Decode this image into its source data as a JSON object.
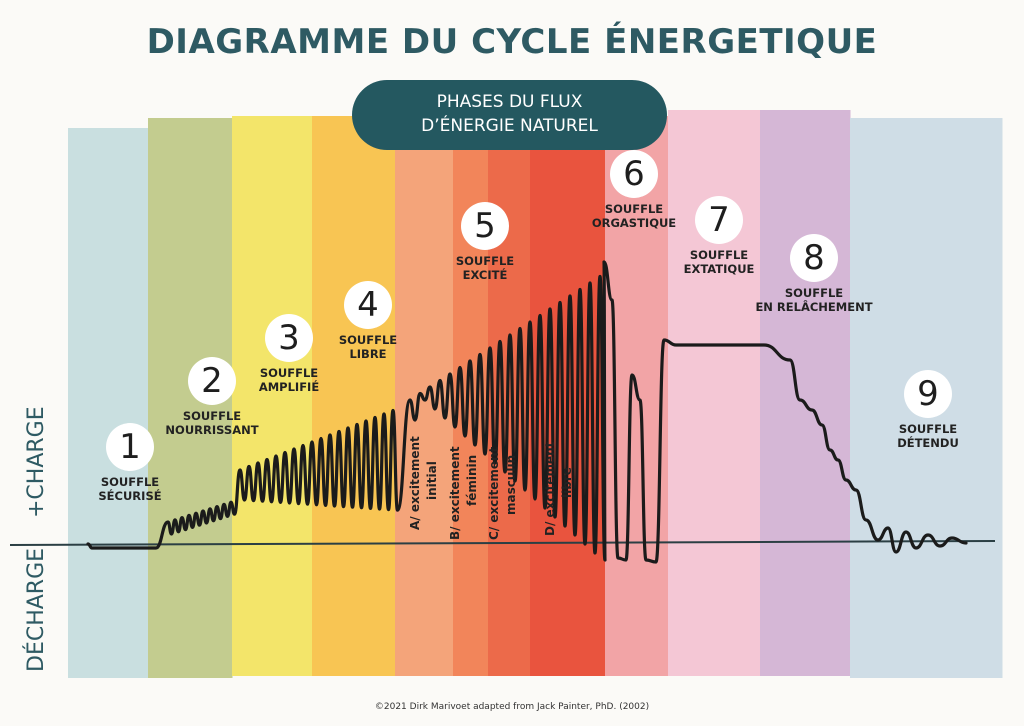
{
  "title": "DIAGRAMME DU CYCLE ÉNERGETIQUE",
  "badge": {
    "line1": "PHASES DU FLUX",
    "line2": "D’ÉNERGIE NATUREL"
  },
  "phases": [
    {
      "num": "1",
      "line1": "SOUFFLE",
      "line2": "SÉCURISÉ"
    },
    {
      "num": "2",
      "line1": "SOUFFLE",
      "line2": "NOURRISSANT"
    },
    {
      "num": "3",
      "line1": "SOUFFLE",
      "line2": "AMPLIFIÉ"
    },
    {
      "num": "4",
      "line1": "SOUFFLE",
      "line2": "LIBRE"
    },
    {
      "num": "5",
      "line1": "SOUFFLE",
      "line2": "EXCITÉ"
    },
    {
      "num": "6",
      "line1": "SOUFFLE",
      "line2": "ORGASTIQUE"
    },
    {
      "num": "7",
      "line1": "SOUFFLE",
      "line2": "EXTATIQUE"
    },
    {
      "num": "8",
      "line1": "SOUFFLE",
      "line2": "EN RELÂCHEMENT"
    },
    {
      "num": "9",
      "line1": "SOUFFLE",
      "line2": "DÉTENDU"
    }
  ],
  "excitement": [
    {
      "line1": "A/ excitement",
      "line2": "initial"
    },
    {
      "line1": "B/ excitement",
      "line2": "féminin"
    },
    {
      "line1": "C/ excitement",
      "line2": "masculin"
    },
    {
      "line1": "D/ excitement",
      "line2": "libre"
    }
  ],
  "axis": {
    "charge": "+CHARGE",
    "decharge": "DÉCHARGE"
  },
  "colors": {
    "bands": [
      "#c9dfe0",
      "#c3cc8f",
      "#f3e56a",
      "#f8c553",
      "#f4a47a",
      "#f2855a",
      "#ec6a4a",
      "#e9543e",
      "#f2a4a6",
      "#f4c7d5",
      "#d5b7d6",
      "#cfdde6"
    ],
    "title": "#2e5a63",
    "badge": "#245860",
    "curve": "#1b1b1b"
  },
  "footer": "©2021 Dirk Marivoet adapted from Jack Painter, PhD. (2002)"
}
